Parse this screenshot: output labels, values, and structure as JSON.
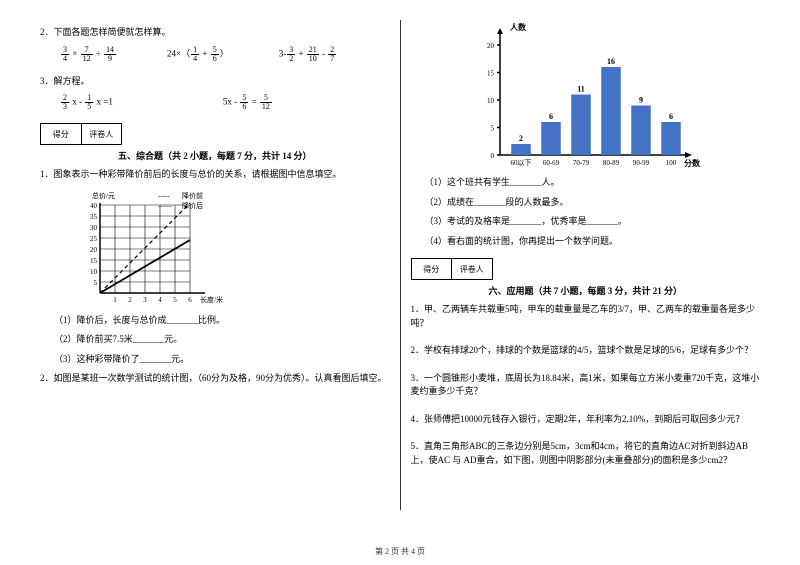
{
  "left": {
    "q2": "2．下面各题怎样简便就怎样算。",
    "expr1": {
      "a": "3",
      "b": "4",
      "c": "7",
      "d": "12",
      "e": "14",
      "f": "9"
    },
    "expr2": {
      "n": "24",
      "a": "1",
      "b": "4",
      "c": "5",
      "d": "6"
    },
    "expr3": {
      "a": "3",
      "b": "2",
      "c": "21",
      "d": "10",
      "e": "2",
      "f": "7"
    },
    "q3": "3．解方程。",
    "eq1": {
      "a": "2",
      "b": "3",
      "c": "1",
      "d": "5"
    },
    "eq2": {
      "a": "5",
      "b": "6",
      "c": "5",
      "d": "12"
    },
    "score1": "得分",
    "score2": "评卷人",
    "sec5": "五、综合题（共 2 小题，每题 7 分，共计 14 分）",
    "p1": "1．图象表示一种彩带降价前后的长度与总价的关系，请根据图中信息填空。",
    "legend1": "降价前",
    "legend2": "降价后",
    "ylab": "总价/元",
    "xlab": "长度/米",
    "grid_yticks": [
      5,
      10,
      15,
      20,
      25,
      30,
      35,
      40
    ],
    "grid_xticks": [
      1,
      2,
      3,
      4,
      5,
      6
    ],
    "sub1": "（1）降价后，长度与总价成_______比例。",
    "sub2": "（2）降价前买7.5米_______元。",
    "sub3": "（3）这种彩带降价了_______元。",
    "p2": "2．如图是某班一次数学测试的统计图，（60分为及格，90分为优秀）。认真看图后填空。"
  },
  "right": {
    "chart": {
      "ylabel": "人数",
      "xlabel": "分数",
      "categories": [
        "60以下",
        "60-69",
        "70-79",
        "80-89",
        "90-99",
        "100"
      ],
      "values": [
        2,
        6,
        11,
        16,
        9,
        6
      ],
      "bar_color": "#4472c4",
      "ymax": 20,
      "ytick_step": 5
    },
    "c1": "（1）这个班共有学生_______人。",
    "c2": "（2）成绩在_______段的人数最多。",
    "c3": "（3）考试的及格率是_______，优秀率是_______。",
    "c4": "（4）看右面的统计图，你再提出一个数学问题。",
    "score1": "得分",
    "score2": "评卷人",
    "sec6": "六、应用题（共 7 小题，每题 3 分，共计 21 分）",
    "a1": "1．甲、乙两辆车共载重5吨，甲车的载重量是乙车的3/7，甲、乙两车的载重量各是多少吨？",
    "a2": "2．学校有排球20个，排球的个数是篮球的4/5，篮球个数是足球的5/6，足球有多少个？",
    "a3": "3．一个圆锥形小麦堆，底周长为18.84米，高1米，如果每立方米小麦重720千克，这堆小麦约重多少千克？",
    "a4": "4．张师傅把10000元钱存入银行，定期2年，年利率为2.10%，到期后可取回多少元？",
    "a5": "5．直角三角形ABC的三条边分别是5cm，3cm和4cm，将它的直角边AC对折到斜边AB上，使AC 与 AD重合，如下图，则图中阴影部分(未重叠部分)的面积是多少cm2？"
  },
  "footer": "第 2 页 共 4 页"
}
